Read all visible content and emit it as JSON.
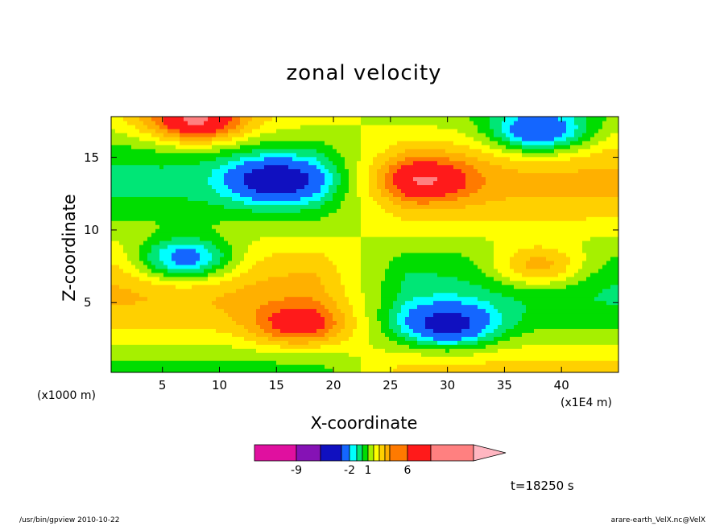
{
  "chart_data": {
    "type": "heatmap",
    "title": "zonal velocity",
    "xlabel": "X-coordinate",
    "ylabel": "Z-coordinate",
    "x_unit_left": "(x1000 m)",
    "x_unit_right": "(x1E4 m)",
    "xlim": [
      0.5,
      45
    ],
    "ylim": [
      0.2,
      17.8
    ],
    "x_ticks": [
      "5",
      "10",
      "15",
      "20",
      "25",
      "30",
      "35",
      "40"
    ],
    "x_tick_values": [
      5,
      10,
      15,
      20,
      25,
      30,
      35,
      40
    ],
    "y_ticks": [
      "5",
      "10",
      "15"
    ],
    "y_tick_values": [
      5,
      10,
      15
    ],
    "colorbar": {
      "labels": [
        "-9",
        "-2",
        "1",
        "6"
      ],
      "label_values": [
        -9,
        -2,
        1,
        6
      ],
      "levels": [
        -12,
        -9,
        -6,
        -4,
        -3,
        -2,
        -1,
        0,
        1,
        2,
        3,
        4,
        6,
        9,
        12
      ],
      "colors": [
        "#e0109f",
        "#8512b5",
        "#1010c0",
        "#1466ff",
        "#00ffff",
        "#00e676",
        "#00dd00",
        "#a6f000",
        "#ffff00",
        "#ffd000",
        "#ffb000",
        "#ff7a00",
        "#ff1a1a",
        "#ff8080",
        "#ffb6c1"
      ]
    },
    "features": [
      {
        "x": 8,
        "z": 17.5,
        "value": 6,
        "note": "orange max top-left"
      },
      {
        "x": 15,
        "z": 13.5,
        "value": -6,
        "note": "blue band"
      },
      {
        "x": 7,
        "z": 8,
        "value": -6,
        "note": "blue min"
      },
      {
        "x": 38,
        "z": 16.8,
        "value": -6,
        "note": "blue min top-right"
      },
      {
        "x": 28,
        "z": 13.5,
        "value": 4,
        "note": "orange band"
      },
      {
        "x": 38,
        "z": 7.5,
        "value": 4,
        "note": "orange max"
      },
      {
        "x": 17,
        "z": 3.5,
        "value": 4,
        "note": "orange lower-left"
      },
      {
        "x": 30,
        "z": 3.5,
        "value": -6,
        "note": "blue lower-right"
      }
    ]
  },
  "time_label": "t=18250 s",
  "footer": {
    "left": "/usr/bin/gpview   2010-10-22",
    "right": "arare-earth_VelX.nc@VelX"
  }
}
